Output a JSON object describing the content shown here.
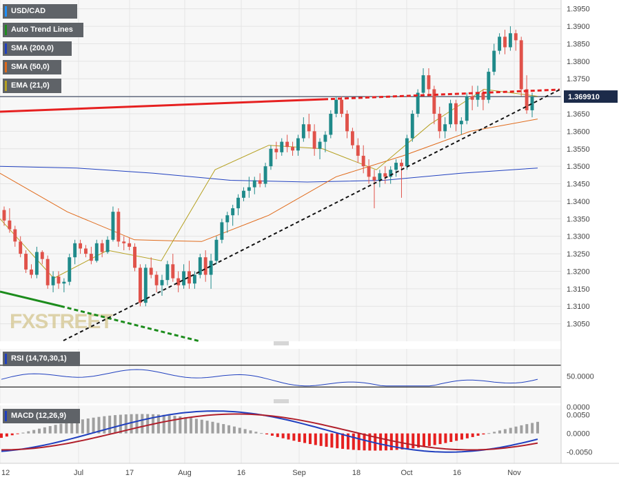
{
  "chart_data": {
    "type": "candlestick",
    "symbol": "USD/CAD",
    "watermark": "FXSTREET",
    "price_axis": {
      "ylim": [
        1.3,
        1.3975
      ],
      "ticks": [
        "1.3950",
        "1.3900",
        "1.3850",
        "1.3800",
        "1.3750",
        "1.3700",
        "1.3650",
        "1.3600",
        "1.3550",
        "1.3500",
        "1.3450",
        "1.3400",
        "1.3350",
        "1.3300",
        "1.3250",
        "1.3200",
        "1.3150",
        "1.3100",
        "1.3050"
      ],
      "current_price": "1.369910"
    },
    "time_axis": [
      "12",
      "Jul",
      "17",
      "Aug",
      "16",
      "Sep",
      "18",
      "Oct",
      "16",
      "Nov"
    ],
    "legend": [
      {
        "label": "USD/CAD",
        "color": "#1e90ff"
      },
      {
        "label": "Auto Trend Lines",
        "color": "#1c8c1c"
      },
      {
        "label": "SMA (200,0)",
        "color": "#1f3fbf"
      },
      {
        "label": "SMA (50,0)",
        "color": "#e06a1a"
      },
      {
        "label": "EMA (21,0)",
        "color": "#b5a020"
      }
    ],
    "candles": [
      [
        1.3375,
        1.3385,
        1.333,
        1.3345
      ],
      [
        1.3345,
        1.338,
        1.331,
        1.332
      ],
      [
        1.332,
        1.333,
        1.327,
        1.3285
      ],
      [
        1.3285,
        1.33,
        1.324,
        1.325
      ],
      [
        1.325,
        1.326,
        1.3195,
        1.3205
      ],
      [
        1.3205,
        1.322,
        1.318,
        1.319
      ],
      [
        1.319,
        1.327,
        1.318,
        1.3255
      ],
      [
        1.3255,
        1.326,
        1.322,
        1.3235
      ],
      [
        1.3235,
        1.3245,
        1.315,
        1.316
      ],
      [
        1.316,
        1.32,
        1.314,
        1.3185
      ],
      [
        1.3185,
        1.32,
        1.315,
        1.3165
      ],
      [
        1.3165,
        1.318,
        1.314,
        1.317
      ],
      [
        1.317,
        1.325,
        1.316,
        1.324
      ],
      [
        1.324,
        1.329,
        1.322,
        1.328
      ],
      [
        1.328,
        1.329,
        1.325,
        1.3265
      ],
      [
        1.3265,
        1.3275,
        1.324,
        1.325
      ],
      [
        1.325,
        1.327,
        1.322,
        1.323
      ],
      [
        1.323,
        1.329,
        1.3225,
        1.328
      ],
      [
        1.328,
        1.329,
        1.324,
        1.3255
      ],
      [
        1.3255,
        1.33,
        1.325,
        1.329
      ],
      [
        1.329,
        1.3385,
        1.3285,
        1.337
      ],
      [
        1.337,
        1.338,
        1.327,
        1.3285
      ],
      [
        1.3285,
        1.33,
        1.326,
        1.328
      ],
      [
        1.328,
        1.3295,
        1.326,
        1.327
      ],
      [
        1.327,
        1.328,
        1.32,
        1.321
      ],
      [
        1.321,
        1.322,
        1.31,
        1.311
      ],
      [
        1.311,
        1.322,
        1.31,
        1.321
      ],
      [
        1.321,
        1.324,
        1.318,
        1.319
      ],
      [
        1.319,
        1.32,
        1.314,
        1.316
      ],
      [
        1.316,
        1.319,
        1.313,
        1.3175
      ],
      [
        1.3175,
        1.323,
        1.316,
        1.322
      ],
      [
        1.322,
        1.325,
        1.317,
        1.318
      ],
      [
        1.318,
        1.32,
        1.314,
        1.316
      ],
      [
        1.316,
        1.322,
        1.315,
        1.32
      ],
      [
        1.32,
        1.323,
        1.315,
        1.3165
      ],
      [
        1.3165,
        1.32,
        1.315,
        1.319
      ],
      [
        1.319,
        1.325,
        1.318,
        1.324
      ],
      [
        1.324,
        1.326,
        1.317,
        1.319
      ],
      [
        1.319,
        1.325,
        1.315,
        1.323
      ],
      [
        1.323,
        1.33,
        1.322,
        1.329
      ],
      [
        1.329,
        1.335,
        1.328,
        1.334
      ],
      [
        1.334,
        1.337,
        1.331,
        1.336
      ],
      [
        1.336,
        1.339,
        1.333,
        1.338
      ],
      [
        1.338,
        1.342,
        1.336,
        1.341
      ],
      [
        1.341,
        1.344,
        1.34,
        1.343
      ],
      [
        1.343,
        1.347,
        1.341,
        1.344
      ],
      [
        1.344,
        1.347,
        1.342,
        1.346
      ],
      [
        1.346,
        1.348,
        1.344,
        1.345
      ],
      [
        1.345,
        1.351,
        1.344,
        1.35
      ],
      [
        1.35,
        1.356,
        1.349,
        1.355
      ],
      [
        1.355,
        1.357,
        1.352,
        1.354
      ],
      [
        1.354,
        1.358,
        1.353,
        1.357
      ],
      [
        1.357,
        1.359,
        1.354,
        1.3555
      ],
      [
        1.3555,
        1.357,
        1.353,
        1.3545
      ],
      [
        1.3545,
        1.359,
        1.353,
        1.358
      ],
      [
        1.358,
        1.364,
        1.357,
        1.362
      ],
      [
        1.362,
        1.365,
        1.358,
        1.36
      ],
      [
        1.36,
        1.362,
        1.353,
        1.355
      ],
      [
        1.355,
        1.358,
        1.352,
        1.357
      ],
      [
        1.357,
        1.36,
        1.354,
        1.359
      ],
      [
        1.359,
        1.366,
        1.358,
        1.365
      ],
      [
        1.365,
        1.37,
        1.364,
        1.369
      ],
      [
        1.369,
        1.37,
        1.364,
        1.365
      ],
      [
        1.365,
        1.366,
        1.358,
        1.36
      ],
      [
        1.36,
        1.361,
        1.355,
        1.356
      ],
      [
        1.356,
        1.358,
        1.351,
        1.353
      ],
      [
        1.353,
        1.356,
        1.348,
        1.35
      ],
      [
        1.35,
        1.352,
        1.345,
        1.347
      ],
      [
        1.347,
        1.349,
        1.338,
        1.346
      ],
      [
        1.346,
        1.349,
        1.344,
        1.348
      ],
      [
        1.348,
        1.35,
        1.345,
        1.347
      ],
      [
        1.347,
        1.35,
        1.345,
        1.349
      ],
      [
        1.349,
        1.352,
        1.347,
        1.351
      ],
      [
        1.351,
        1.352,
        1.341,
        1.35
      ],
      [
        1.35,
        1.359,
        1.349,
        1.358
      ],
      [
        1.358,
        1.366,
        1.357,
        1.365
      ],
      [
        1.365,
        1.372,
        1.364,
        1.371
      ],
      [
        1.371,
        1.378,
        1.37,
        1.376
      ],
      [
        1.376,
        1.378,
        1.37,
        1.372
      ],
      [
        1.372,
        1.373,
        1.362,
        1.365
      ],
      [
        1.365,
        1.367,
        1.358,
        1.36
      ],
      [
        1.36,
        1.364,
        1.358,
        1.362
      ],
      [
        1.362,
        1.369,
        1.361,
        1.368
      ],
      [
        1.368,
        1.369,
        1.36,
        1.362
      ],
      [
        1.362,
        1.364,
        1.359,
        1.363
      ],
      [
        1.363,
        1.371,
        1.362,
        1.37
      ],
      [
        1.37,
        1.373,
        1.366,
        1.369
      ],
      [
        1.369,
        1.373,
        1.367,
        1.371
      ],
      [
        1.371,
        1.372,
        1.366,
        1.369
      ],
      [
        1.369,
        1.378,
        1.368,
        1.377
      ],
      [
        1.377,
        1.385,
        1.376,
        1.383
      ],
      [
        1.383,
        1.388,
        1.382,
        1.387
      ],
      [
        1.387,
        1.389,
        1.382,
        1.384
      ],
      [
        1.384,
        1.39,
        1.383,
        1.388
      ],
      [
        1.388,
        1.389,
        1.383,
        1.386
      ],
      [
        1.386,
        1.387,
        1.37,
        1.372
      ],
      [
        1.372,
        1.376,
        1.365,
        1.366
      ],
      [
        1.366,
        1.371,
        1.364,
        1.3699
      ]
    ],
    "sma200": [
      1.35,
      1.3495,
      1.348,
      1.346,
      1.3455,
      1.346,
      1.348,
      1.3495
    ],
    "sma50": [
      1.348,
      1.337,
      1.329,
      1.3285,
      1.336,
      1.347,
      1.353,
      1.36,
      1.3635
    ],
    "ema21": [
      1.335,
      1.318,
      1.326,
      1.323,
      1.349,
      1.356,
      1.355,
      1.349,
      1.362,
      1.372,
      1.37
    ],
    "rsi": {
      "label": "RSI (14,70,30,1)",
      "ticks": [
        "50.0000",
        "0.0000"
      ]
    },
    "macd": {
      "label": "MACD (12,26,9)",
      "ticks": [
        "0.0050",
        "0.0000",
        "-0.0050"
      ]
    }
  }
}
